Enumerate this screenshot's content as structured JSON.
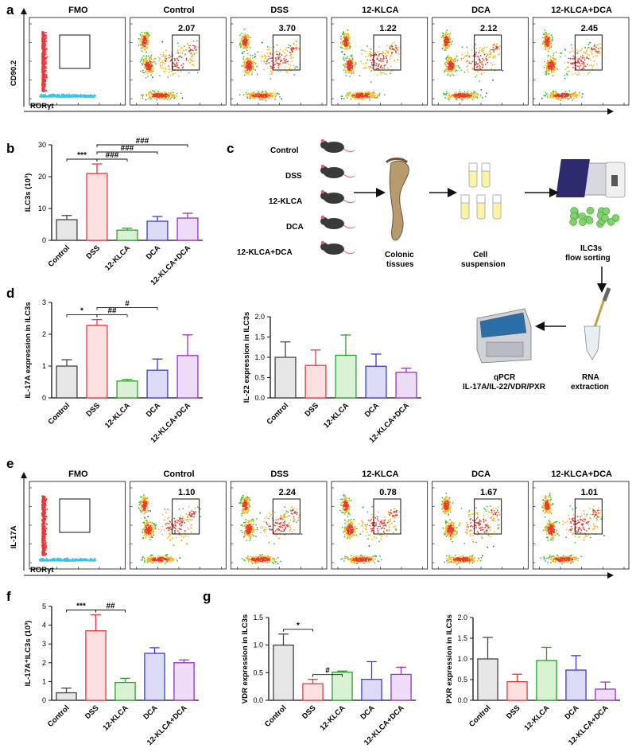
{
  "panel_letters": [
    "a",
    "b",
    "c",
    "d",
    "e",
    "f",
    "g"
  ],
  "flow_a": {
    "titles": [
      "FMO",
      "Control",
      "DSS",
      "12-KLCA",
      "DCA",
      "12-KLCA+DCA"
    ],
    "gates": [
      "",
      "2.07",
      "3.70",
      "1.22",
      "2.12",
      "2.45"
    ],
    "y_axis": "CD90.2",
    "x_axis": "RORγt"
  },
  "flow_e": {
    "titles": [
      "FMO",
      "Control",
      "DSS",
      "12-KLCA",
      "DCA",
      "12-KLCA+DCA"
    ],
    "gates": [
      "",
      "1.10",
      "2.24",
      "0.78",
      "1.67",
      "1.01"
    ],
    "y_axis": "IL-17A",
    "x_axis": "RORγt"
  },
  "workflow": {
    "groups": [
      "Control",
      "DSS",
      "12-KLCA",
      "DCA",
      "12-KLCA+DCA"
    ],
    "step_colonic": [
      "Colonic",
      "tissues"
    ],
    "step_cell": [
      "Cell",
      "suspension"
    ],
    "step_sort": [
      "ILC3s",
      "flow sorting"
    ],
    "step_rna": [
      "RNA",
      "extraction"
    ],
    "step_qpcr": [
      "qPCR",
      "IL-17A/IL-22/VDR/PXR"
    ]
  },
  "colors": {
    "Control": "#444444",
    "DSS": "#e8383b",
    "12-KLCA": "#2ca02c",
    "DCA": "#3a3ad8",
    "12-KLCA+DCA": "#9b30c8",
    "Control_fill": "#e6e6e6",
    "DSS_fill": "#fde0e0",
    "12-KLCA_fill": "#d9f2d3",
    "DCA_fill": "#dcdcf8",
    "12-KLCA+DCA_fill": "#eedcf8"
  },
  "chart_data": [
    {
      "id": "b",
      "type": "bar",
      "ylabel": "ILC3s (10³)",
      "ylim": [
        0,
        30
      ],
      "yticks": [
        0,
        10,
        20,
        30
      ],
      "categories": [
        "Control",
        "DSS",
        "12-KLCA",
        "DCA",
        "12-KLCA+DCA"
      ],
      "values": [
        6.5,
        21,
        3.2,
        6.0,
        7.0
      ],
      "errors": [
        1.3,
        3.0,
        0.6,
        1.5,
        1.5
      ],
      "significance": [
        {
          "from": 0,
          "to": 1,
          "label": "***"
        },
        {
          "from": 1,
          "to": 2,
          "label": "###"
        },
        {
          "from": 1,
          "to": 3,
          "label": "###"
        },
        {
          "from": 1,
          "to": 4,
          "label": "###"
        }
      ]
    },
    {
      "id": "d1",
      "type": "bar",
      "ylabel": "IL-17A expression in ILC3s",
      "ylim": [
        0,
        3
      ],
      "yticks": [
        0,
        1,
        2,
        3
      ],
      "categories": [
        "Control",
        "DSS",
        "12-KLCA",
        "DCA",
        "12-KLCA+DCA"
      ],
      "values": [
        1.0,
        2.28,
        0.53,
        0.87,
        1.33
      ],
      "errors": [
        0.2,
        0.18,
        0.05,
        0.35,
        0.65
      ],
      "significance": [
        {
          "from": 0,
          "to": 1,
          "label": "*"
        },
        {
          "from": 1,
          "to": 2,
          "label": "##"
        },
        {
          "from": 1,
          "to": 3,
          "label": "#"
        }
      ]
    },
    {
      "id": "d2",
      "type": "bar",
      "ylabel": "IL-22 expression in ILC3s",
      "ylim": [
        0,
        2.0
      ],
      "yticks": [
        0.0,
        0.5,
        1.0,
        1.5,
        2.0
      ],
      "categories": [
        "Control",
        "DSS",
        "12-KLCA",
        "DCA",
        "12-KLCA+DCA"
      ],
      "values": [
        1.0,
        0.8,
        1.05,
        0.78,
        0.63
      ],
      "errors": [
        0.38,
        0.38,
        0.5,
        0.3,
        0.1
      ],
      "significance": []
    },
    {
      "id": "f",
      "type": "bar",
      "ylabel": "IL-17A⁺ILC3s (10³)",
      "ylim": [
        0,
        5
      ],
      "yticks": [
        0,
        1,
        2,
        3,
        4,
        5
      ],
      "categories": [
        "Control",
        "DSS",
        "12-KLCA",
        "DCA",
        "12-KLCA+DCA"
      ],
      "values": [
        0.4,
        3.7,
        0.95,
        2.5,
        2.0
      ],
      "errors": [
        0.25,
        0.85,
        0.22,
        0.3,
        0.15
      ],
      "significance": [
        {
          "from": 0,
          "to": 1,
          "label": "***"
        },
        {
          "from": 1,
          "to": 2,
          "label": "##"
        }
      ]
    },
    {
      "id": "g1",
      "type": "bar",
      "ylabel": "VDR expression in ILC3s",
      "ylim": [
        0,
        1.5
      ],
      "yticks": [
        0.0,
        0.5,
        1.0,
        1.5
      ],
      "categories": [
        "Control",
        "DSS",
        "12-KLCA",
        "DCA",
        "12-KLCA+DCA"
      ],
      "values": [
        1.0,
        0.3,
        0.51,
        0.38,
        0.47
      ],
      "errors": [
        0.2,
        0.08,
        0.02,
        0.32,
        0.13
      ],
      "significance": [
        {
          "from": 0,
          "to": 1,
          "label": "*"
        },
        {
          "from": 1,
          "to": 2,
          "label": "#"
        }
      ]
    },
    {
      "id": "g2",
      "type": "bar",
      "ylabel": "PXR expression in ILC3s",
      "ylim": [
        0,
        2.0
      ],
      "yticks": [
        0.0,
        0.5,
        1.0,
        1.5,
        2.0
      ],
      "categories": [
        "Control",
        "DSS",
        "12-KLCA",
        "DCA",
        "12-KLCA+DCA"
      ],
      "values": [
        1.0,
        0.45,
        0.96,
        0.73,
        0.27
      ],
      "errors": [
        0.52,
        0.18,
        0.32,
        0.35,
        0.17
      ],
      "significance": []
    }
  ]
}
